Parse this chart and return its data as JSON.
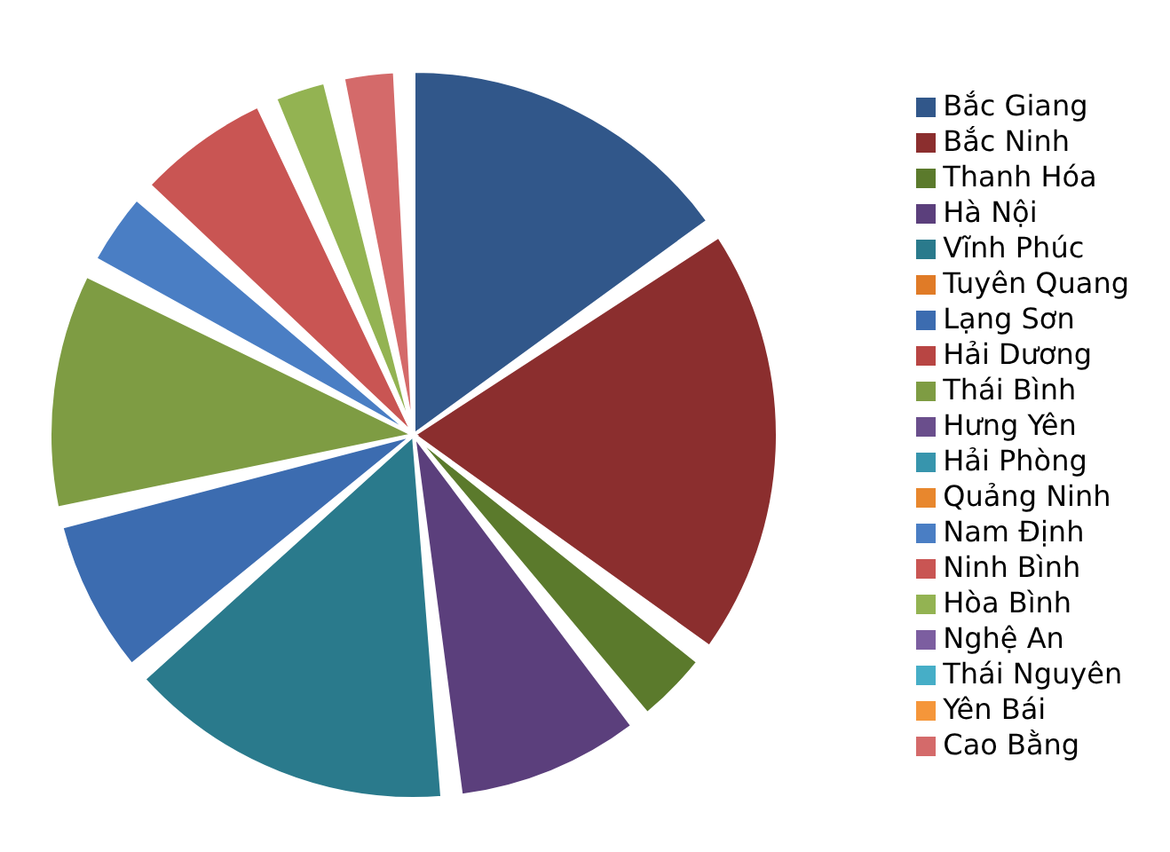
{
  "chart_data": {
    "type": "pie",
    "categories": [
      "Bắc Giang",
      "Bắc Ninh",
      "Thanh Hóa",
      "Hà Nội",
      "Vĩnh Phúc",
      "Tuyên Quang",
      "Lạng Sơn",
      "Hải Dương",
      "Thái Bình",
      "Hưng Yên",
      "Hải Phòng",
      "Quảng Ninh",
      "Nam Định",
      "Ninh Bình",
      "Hòa Bình",
      "Nghệ An",
      "Thái Nguyên",
      "Yên Bái",
      "Cao Bằng"
    ],
    "values": [
      16.5,
      21,
      3.5,
      9,
      16,
      0,
      7.5,
      0,
      11.5,
      0,
      0,
      0,
      3.5,
      6.5,
      2.5,
      0,
      0,
      0,
      2.5
    ],
    "colors": [
      "#31578a",
      "#8b2e2e",
      "#5b7a2c",
      "#5b3f7c",
      "#2a7a8c",
      "#e07b27",
      "#3c6cb0",
      "#b84543",
      "#7e9c43",
      "#6a4e8c",
      "#3795ad",
      "#e8872d",
      "#4a7ec4",
      "#c95553",
      "#93b352",
      "#7c5ea0",
      "#46aec7",
      "#f5963a",
      "#d46a6a"
    ],
    "legend": "right"
  }
}
